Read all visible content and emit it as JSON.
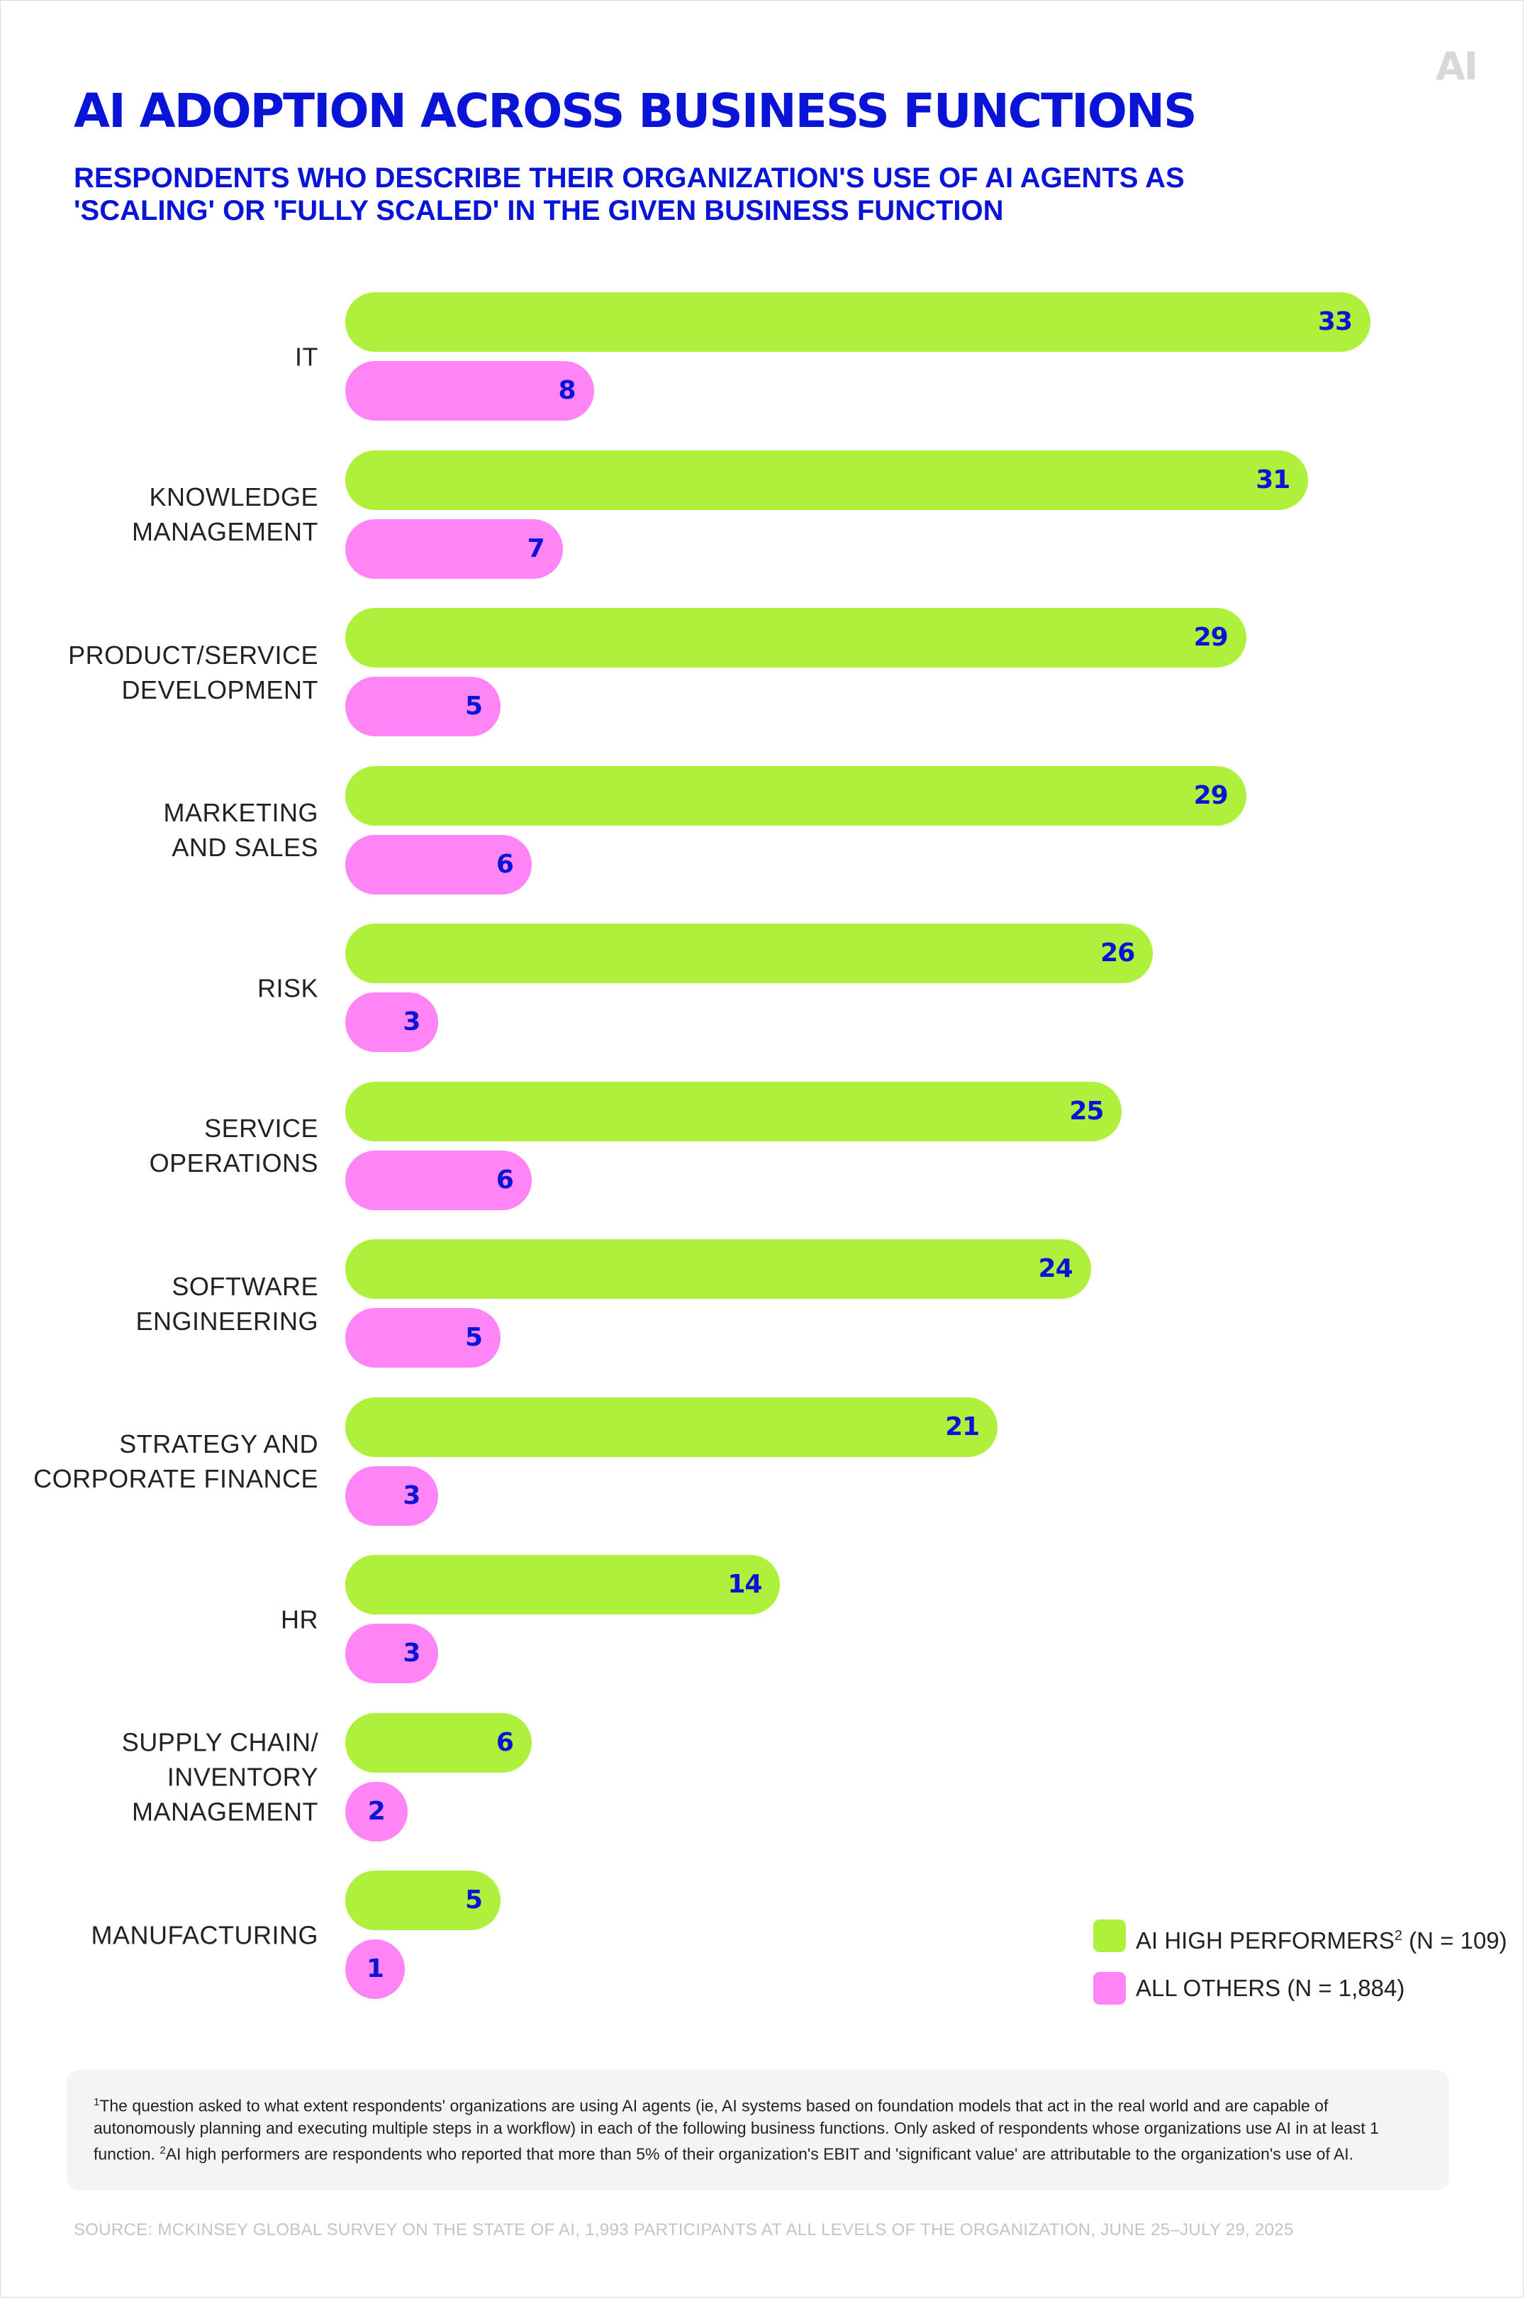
{
  "logo": "AI",
  "chart_data": {
    "type": "bar",
    "orientation": "horizontal",
    "title": "AI ADOPTION ACROSS BUSINESS FUNCTIONS",
    "subtitle": "RESPONDENTS WHO DESCRIBE THEIR ORGANIZATION'S USE OF AI AGENTS AS 'SCALING' OR 'FULLY SCALED' IN THE GIVEN BUSINESS FUNCTION",
    "xlim": [
      0,
      33
    ],
    "grid": false,
    "legend_position": "bottom-right",
    "categories": [
      [
        "IT"
      ],
      [
        "KNOWLEDGE",
        "MANAGEMENT"
      ],
      [
        "PRODUCT/SERVICE",
        "DEVELOPMENT"
      ],
      [
        "MARKETING",
        "AND SALES"
      ],
      [
        "RISK"
      ],
      [
        "SERVICE",
        "OPERATIONS"
      ],
      [
        "SOFTWARE",
        "ENGINEERING"
      ],
      [
        "STRATEGY AND",
        "CORPORATE FINANCE"
      ],
      [
        "HR"
      ],
      [
        "SUPPLY CHAIN/",
        "INVENTORY",
        "MANAGEMENT"
      ],
      [
        "MANUFACTURING"
      ]
    ],
    "series": [
      {
        "name": "AI HIGH PERFORMERS",
        "legend_sup": "2",
        "legend_n": " (N = 109)",
        "color": "#aef03c",
        "values": [
          33,
          31,
          29,
          29,
          26,
          25,
          24,
          21,
          14,
          6,
          5
        ]
      },
      {
        "name": "ALL OTHERS",
        "legend_sup": "",
        "legend_n": " (N = 1,884)",
        "color": "#ff85f6",
        "values": [
          8,
          7,
          5,
          6,
          3,
          6,
          5,
          3,
          3,
          2,
          1
        ]
      }
    ]
  },
  "footnote": {
    "sup1": "1",
    "text1": "The question asked to what extent respondents' organizations are using AI agents (ie, AI systems based on foundation models that act in the real world and are capable of autonomously planning and executing multiple steps in a workflow) in each of the following business functions. Only asked of respondents whose organizations use AI in at least 1 function. ",
    "sup2": "2",
    "text2": "AI high performers are respondents who reported that more than 5% of their organization's EBIT and 'significant value' are attributable to the organization's use of AI."
  },
  "source": "SOURCE: MCKINSEY GLOBAL SURVEY ON THE STATE OF AI, 1,993 PARTICIPANTS AT ALL LEVELS OF THE ORGANIZATION, JUNE 25–JULY 29, 2025",
  "colors": {
    "accent": "#0a14d6",
    "high": "#aef03c",
    "others": "#ff85f6"
  }
}
